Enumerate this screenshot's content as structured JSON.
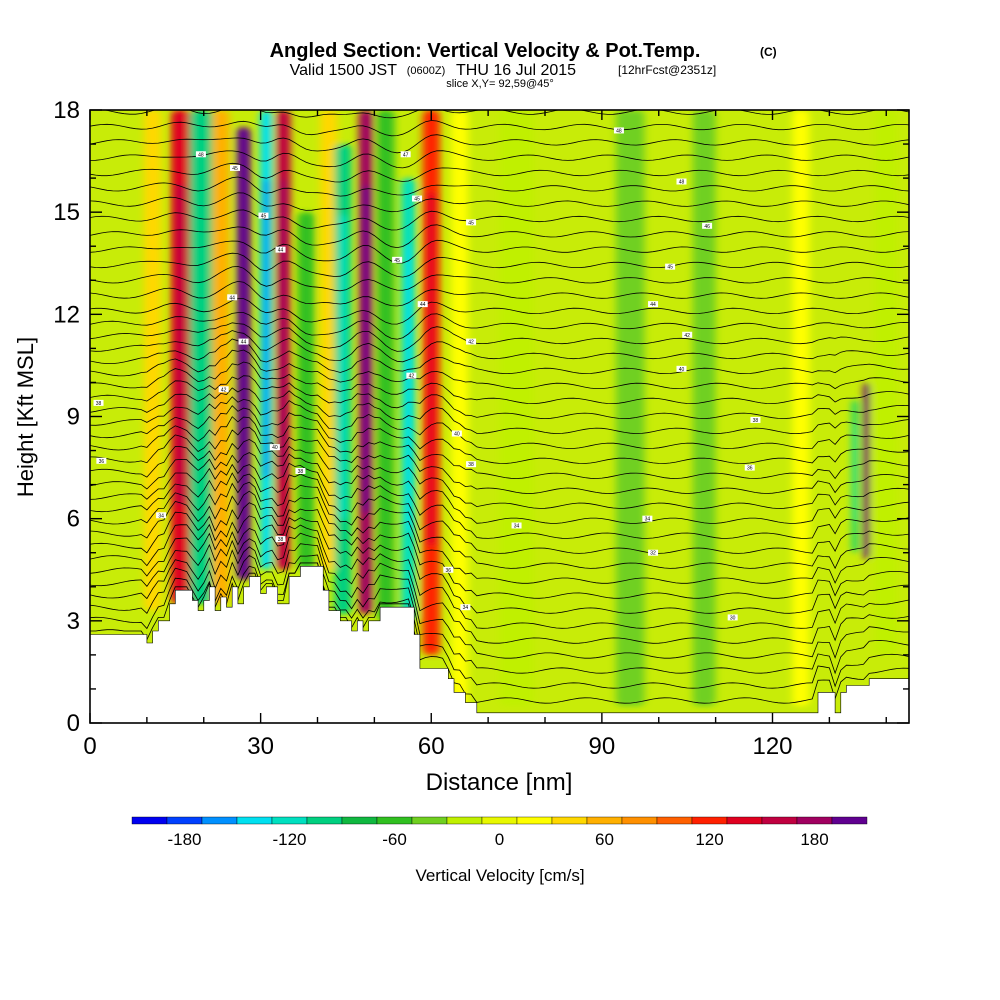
{
  "chart_data": {
    "type": "heatmap",
    "title": "Angled Section: Vertical Velocity & Pot.Temp.",
    "title_unit": "(C)",
    "subtitle_valid": "Valid 1500 JST",
    "subtitle_utc": "(0600Z)",
    "subtitle_date": "THU 16 Jul 2015",
    "subtitle_fcst": "[12hrFcst@2351z]",
    "subtitle_slice": "slice X,Y= 92,59@45°",
    "xlabel": "Distance [nm]",
    "ylabel": "Height [Kft MSL]",
    "xlim": [
      0,
      144
    ],
    "ylim": [
      0,
      18
    ],
    "x_ticks": [
      "0",
      "30",
      "60",
      "90",
      "120"
    ],
    "x_tick_values": [
      0,
      30,
      60,
      90,
      120
    ],
    "y_ticks": [
      "0",
      "3",
      "6",
      "9",
      "12",
      "15",
      "18"
    ],
    "y_tick_values": [
      0,
      3,
      6,
      9,
      12,
      15,
      18
    ],
    "colorbar": {
      "label": "Vertical Velocity [cm/s]",
      "min": -210,
      "max": 210,
      "step": 20,
      "tick_labels": [
        "-180",
        "-120",
        "-60",
        "0",
        "60",
        "120",
        "180"
      ],
      "tick_values": [
        -180,
        -120,
        -60,
        0,
        60,
        120,
        180
      ],
      "colors": [
        "#0000f0",
        "#0040ff",
        "#0090ff",
        "#00e0f0",
        "#00e0c0",
        "#00d080",
        "#10b840",
        "#30c020",
        "#70d020",
        "#c0f000",
        "#e8f800",
        "#ffff00",
        "#ffd800",
        "#ffb000",
        "#ff9000",
        "#ff6000",
        "#ff2000",
        "#e00020",
        "#c00040",
        "#a00060",
        "#600090"
      ]
    },
    "velocity_features": [
      {
        "x": 11,
        "w": 3,
        "y0": 3.3,
        "y1": 18,
        "v": 35
      },
      {
        "x": 16,
        "w": 3.5,
        "y0": 3.5,
        "y1": 18,
        "v": 140
      },
      {
        "x": 19.5,
        "w": 4,
        "y0": 3.5,
        "y1": 18,
        "v": -100
      },
      {
        "x": 23,
        "w": 3,
        "y0": 3.5,
        "y1": 18,
        "v": 60
      },
      {
        "x": 27,
        "w": 2.5,
        "y0": 4.2,
        "y1": 17.5,
        "v": 190
      },
      {
        "x": 31,
        "w": 2.2,
        "y0": 4.5,
        "y1": 18,
        "v": -140
      },
      {
        "x": 34,
        "w": 2.5,
        "y0": 4.5,
        "y1": 18,
        "v": 150
      },
      {
        "x": 38,
        "w": 3,
        "y0": 4.5,
        "y1": 15,
        "v": -60
      },
      {
        "x": 42,
        "w": 3,
        "y0": 4.5,
        "y1": 18,
        "v": 40
      },
      {
        "x": 44.5,
        "w": 3,
        "y0": 3.2,
        "y1": 17,
        "v": -110
      },
      {
        "x": 48.5,
        "w": 2.5,
        "y0": 3.2,
        "y1": 18,
        "v": 175
      },
      {
        "x": 52,
        "w": 3,
        "y0": 3,
        "y1": 18,
        "v": -70
      },
      {
        "x": 56,
        "w": 2.5,
        "y0": 3,
        "y1": 16,
        "v": -120
      },
      {
        "x": 60,
        "w": 3,
        "y0": 2,
        "y1": 18,
        "v": 110
      },
      {
        "x": 65,
        "w": 3,
        "y0": 0.5,
        "y1": 18,
        "v": 25
      },
      {
        "x": 75,
        "w": 6,
        "y0": 0.5,
        "y1": 18,
        "v": -30
      },
      {
        "x": 95,
        "w": 5,
        "y0": 0.5,
        "y1": 18,
        "v": -40
      },
      {
        "x": 108,
        "w": 4,
        "y0": 0.5,
        "y1": 18,
        "v": -35
      },
      {
        "x": 125,
        "w": 3,
        "y0": 0.5,
        "y1": 18,
        "v": 15
      },
      {
        "x": 134.5,
        "w": 1,
        "y0": 5,
        "y1": 9.5,
        "v": -110
      },
      {
        "x": 136.5,
        "w": 1,
        "y0": 4.8,
        "y1": 10,
        "v": 200
      },
      {
        "x": 140,
        "w": 4,
        "y0": 2,
        "y1": 18,
        "v": -30
      }
    ],
    "terrain": [
      [
        0,
        2.6
      ],
      [
        10,
        2.6
      ],
      [
        10,
        2.35
      ],
      [
        11,
        2.35
      ],
      [
        11,
        2.7
      ],
      [
        12,
        2.7
      ],
      [
        12,
        3.0
      ],
      [
        14,
        3.0
      ],
      [
        14,
        3.5
      ],
      [
        15,
        3.5
      ],
      [
        15,
        3.9
      ],
      [
        18,
        3.9
      ],
      [
        18,
        3.6
      ],
      [
        19,
        3.6
      ],
      [
        19,
        3.3
      ],
      [
        20,
        3.3
      ],
      [
        20,
        3.6
      ],
      [
        21,
        3.6
      ],
      [
        21,
        4.0
      ],
      [
        22,
        4.0
      ],
      [
        22,
        3.3
      ],
      [
        23,
        3.3
      ],
      [
        23,
        3.7
      ],
      [
        24,
        3.7
      ],
      [
        24,
        3.4
      ],
      [
        25,
        3.4
      ],
      [
        25,
        4.0
      ],
      [
        26,
        4.0
      ],
      [
        26,
        3.5
      ],
      [
        27,
        3.5
      ],
      [
        27,
        4.0
      ],
      [
        28,
        4.0
      ],
      [
        28,
        4.3
      ],
      [
        30,
        4.3
      ],
      [
        30,
        3.8
      ],
      [
        31,
        3.8
      ],
      [
        31,
        4.0
      ],
      [
        33,
        4.0
      ],
      [
        33,
        3.5
      ],
      [
        35,
        3.5
      ],
      [
        35,
        4.3
      ],
      [
        37,
        4.3
      ],
      [
        37,
        4.6
      ],
      [
        41,
        4.6
      ],
      [
        41,
        3.9
      ],
      [
        42,
        3.9
      ],
      [
        42,
        3.3
      ],
      [
        44,
        3.3
      ],
      [
        44,
        3.0
      ],
      [
        46,
        3.0
      ],
      [
        46,
        2.7
      ],
      [
        47,
        2.7
      ],
      [
        47,
        3.0
      ],
      [
        48,
        3.0
      ],
      [
        48,
        2.7
      ],
      [
        49,
        2.7
      ],
      [
        49,
        3.0
      ],
      [
        51,
        3.0
      ],
      [
        51,
        3.4
      ],
      [
        57,
        3.4
      ],
      [
        57,
        2.6
      ],
      [
        58,
        2.6
      ],
      [
        58,
        1.6
      ],
      [
        63,
        1.6
      ],
      [
        63,
        1.3
      ],
      [
        64,
        1.3
      ],
      [
        64,
        0.9
      ],
      [
        66,
        0.9
      ],
      [
        66,
        0.6
      ],
      [
        68,
        0.6
      ],
      [
        68,
        0.3
      ],
      [
        128,
        0.3
      ],
      [
        128,
        0.9
      ],
      [
        131,
        0.9
      ],
      [
        131,
        0.3
      ],
      [
        132,
        0.3
      ],
      [
        132,
        0.9
      ],
      [
        133,
        0.9
      ],
      [
        133,
        1.1
      ],
      [
        137,
        1.1
      ],
      [
        137,
        1.3
      ],
      [
        144,
        1.3
      ]
    ],
    "theta_labels": [
      {
        "x": 19.5,
        "y": 16.7,
        "text": "48"
      },
      {
        "x": 25.5,
        "y": 16.3,
        "text": "45"
      },
      {
        "x": 30.5,
        "y": 14.9,
        "text": "45"
      },
      {
        "x": 33.5,
        "y": 13.9,
        "text": "44"
      },
      {
        "x": 25,
        "y": 12.5,
        "text": "44"
      },
      {
        "x": 27,
        "y": 11.2,
        "text": "44"
      },
      {
        "x": 23.5,
        "y": 9.8,
        "text": "42"
      },
      {
        "x": 32.5,
        "y": 8.1,
        "text": "40"
      },
      {
        "x": 37,
        "y": 7.4,
        "text": "38"
      },
      {
        "x": 33.5,
        "y": 5.4,
        "text": "38"
      },
      {
        "x": 12.5,
        "y": 6.1,
        "text": "34"
      },
      {
        "x": 1.5,
        "y": 9.4,
        "text": "38"
      },
      {
        "x": 2,
        "y": 7.7,
        "text": "36"
      },
      {
        "x": 55.5,
        "y": 16.7,
        "text": "47"
      },
      {
        "x": 57.5,
        "y": 15.4,
        "text": "45"
      },
      {
        "x": 67,
        "y": 14.7,
        "text": "45"
      },
      {
        "x": 54,
        "y": 13.6,
        "text": "45"
      },
      {
        "x": 58.5,
        "y": 12.3,
        "text": "44"
      },
      {
        "x": 67,
        "y": 11.2,
        "text": "42"
      },
      {
        "x": 56.5,
        "y": 10.2,
        "text": "42"
      },
      {
        "x": 64.5,
        "y": 8.5,
        "text": "40"
      },
      {
        "x": 67,
        "y": 7.6,
        "text": "38"
      },
      {
        "x": 63,
        "y": 4.5,
        "text": "36"
      },
      {
        "x": 66,
        "y": 3.4,
        "text": "34"
      },
      {
        "x": 93,
        "y": 17.4,
        "text": "48"
      },
      {
        "x": 104,
        "y": 15.9,
        "text": "48"
      },
      {
        "x": 108.5,
        "y": 14.6,
        "text": "46"
      },
      {
        "x": 102,
        "y": 13.4,
        "text": "45"
      },
      {
        "x": 99,
        "y": 12.3,
        "text": "44"
      },
      {
        "x": 105,
        "y": 11.4,
        "text": "42"
      },
      {
        "x": 104,
        "y": 10.4,
        "text": "40"
      },
      {
        "x": 117,
        "y": 8.9,
        "text": "38"
      },
      {
        "x": 116,
        "y": 7.5,
        "text": "36"
      },
      {
        "x": 98,
        "y": 6.0,
        "text": "34"
      },
      {
        "x": 75,
        "y": 5.8,
        "text": "34"
      },
      {
        "x": 99,
        "y": 5.0,
        "text": "32"
      },
      {
        "x": 113,
        "y": 3.1,
        "text": "30"
      }
    ]
  }
}
